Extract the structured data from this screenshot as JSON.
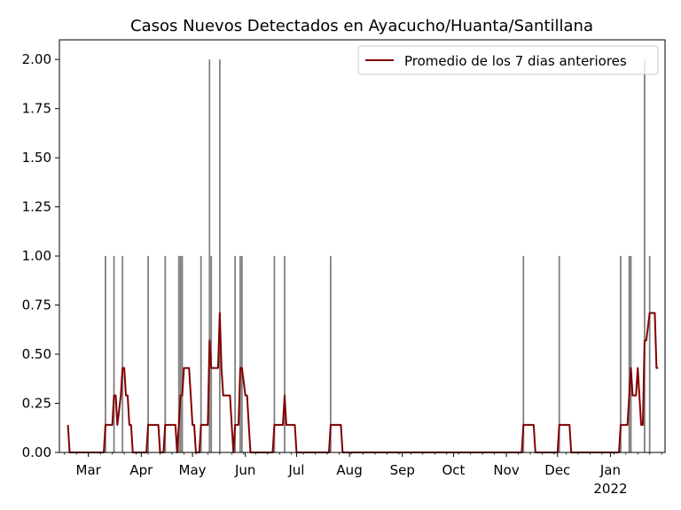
{
  "chart_data": {
    "type": "bar",
    "title": "Casos Nuevos Detectados en Ayacucho/Huanta/Santillana",
    "xlabel": "",
    "ylabel": "",
    "ylim": [
      0,
      2.1
    ],
    "xlim": [
      "2021-02-12",
      "2022-02-02"
    ],
    "yticks": [
      0.0,
      0.25,
      0.5,
      0.75,
      1.0,
      1.25,
      1.5,
      1.75,
      2.0
    ],
    "ytick_labels": [
      "0.00",
      "0.25",
      "0.50",
      "0.75",
      "1.00",
      "1.25",
      "1.50",
      "1.75",
      "2.00"
    ],
    "xticks": [
      {
        "date": "2021-03-01",
        "label": "Mar"
      },
      {
        "date": "2021-04-01",
        "label": "Apr"
      },
      {
        "date": "2021-05-01",
        "label": "May"
      },
      {
        "date": "2021-06-01",
        "label": "Jun"
      },
      {
        "date": "2021-07-01",
        "label": "Jul"
      },
      {
        "date": "2021-08-01",
        "label": "Aug"
      },
      {
        "date": "2021-09-01",
        "label": "Sep"
      },
      {
        "date": "2021-10-01",
        "label": "Oct"
      },
      {
        "date": "2021-11-01",
        "label": "Nov"
      },
      {
        "date": "2021-12-01",
        "label": "Dec"
      },
      {
        "date": "2022-01-01",
        "label": "Jan",
        "sublabel": "2022"
      }
    ],
    "grid": false,
    "legend_position": "top-right",
    "bar_color": "#808080",
    "line_color": "#800000",
    "cases": [
      {
        "date": "2021-03-11",
        "value": 1
      },
      {
        "date": "2021-03-16",
        "value": 1
      },
      {
        "date": "2021-03-21",
        "value": 1
      },
      {
        "date": "2021-04-05",
        "value": 1
      },
      {
        "date": "2021-04-15",
        "value": 1
      },
      {
        "date": "2021-04-23",
        "value": 1
      },
      {
        "date": "2021-04-24",
        "value": 1
      },
      {
        "date": "2021-04-25",
        "value": 1
      },
      {
        "date": "2021-05-06",
        "value": 1
      },
      {
        "date": "2021-05-11",
        "value": 2
      },
      {
        "date": "2021-05-12",
        "value": 1
      },
      {
        "date": "2021-05-17",
        "value": 2
      },
      {
        "date": "2021-05-26",
        "value": 1
      },
      {
        "date": "2021-05-29",
        "value": 1
      },
      {
        "date": "2021-05-30",
        "value": 1
      },
      {
        "date": "2021-06-18",
        "value": 1
      },
      {
        "date": "2021-06-24",
        "value": 1
      },
      {
        "date": "2021-07-21",
        "value": 1
      },
      {
        "date": "2021-11-11",
        "value": 1
      },
      {
        "date": "2021-12-02",
        "value": 1
      },
      {
        "date": "2022-01-07",
        "value": 1
      },
      {
        "date": "2022-01-12",
        "value": 1
      },
      {
        "date": "2022-01-13",
        "value": 1
      },
      {
        "date": "2022-01-21",
        "value": 2
      },
      {
        "date": "2022-01-24",
        "value": 1
      }
    ],
    "series": [
      {
        "name": "Promedio de los 7 dias anteriores",
        "type": "line",
        "x": [
          "2021-02-17",
          "2021-02-18",
          "2021-03-10",
          "2021-03-11",
          "2021-03-15",
          "2021-03-16",
          "2021-03-17",
          "2021-03-18",
          "2021-03-20",
          "2021-03-21",
          "2021-03-22",
          "2021-03-23",
          "2021-03-24",
          "2021-03-25",
          "2021-03-26",
          "2021-03-27",
          "2021-04-04",
          "2021-04-05",
          "2021-04-11",
          "2021-04-12",
          "2021-04-14",
          "2021-04-15",
          "2021-04-21",
          "2021-04-22",
          "2021-04-23",
          "2021-04-24",
          "2021-04-25",
          "2021-04-26",
          "2021-04-29",
          "2021-04-30",
          "2021-05-01",
          "2021-05-02",
          "2021-05-03",
          "2021-05-05",
          "2021-05-06",
          "2021-05-10",
          "2021-05-11",
          "2021-05-12",
          "2021-05-16",
          "2021-05-17",
          "2021-05-18",
          "2021-05-19",
          "2021-05-23",
          "2021-05-24",
          "2021-05-25",
          "2021-05-26",
          "2021-05-28",
          "2021-05-29",
          "2021-05-30",
          "2021-06-01",
          "2021-06-02",
          "2021-06-03",
          "2021-06-04",
          "2021-06-05",
          "2021-06-17",
          "2021-06-18",
          "2021-06-23",
          "2021-06-24",
          "2021-06-25",
          "2021-06-30",
          "2021-07-01",
          "2021-07-20",
          "2021-07-21",
          "2021-07-27",
          "2021-07-28",
          "2021-11-10",
          "2021-11-11",
          "2021-11-17",
          "2021-11-18",
          "2021-12-01",
          "2021-12-02",
          "2021-12-08",
          "2021-12-09",
          "2022-01-06",
          "2022-01-07",
          "2022-01-11",
          "2022-01-12",
          "2022-01-13",
          "2022-01-14",
          "2022-01-16",
          "2022-01-17",
          "2022-01-19",
          "2022-01-20",
          "2022-01-21",
          "2022-01-22",
          "2022-01-24",
          "2022-01-27",
          "2022-01-28",
          "2022-01-29"
        ],
        "values": [
          0.14,
          0,
          0,
          0.14,
          0.14,
          0.29,
          0.29,
          0.14,
          0.29,
          0.43,
          0.43,
          0.29,
          0.29,
          0.14,
          0.14,
          0,
          0,
          0.14,
          0.14,
          0,
          0,
          0.14,
          0.14,
          0,
          0.14,
          0.29,
          0.29,
          0.43,
          0.43,
          0.29,
          0.14,
          0.14,
          0,
          0,
          0.14,
          0.14,
          0.57,
          0.43,
          0.43,
          0.71,
          0.43,
          0.29,
          0.29,
          0.14,
          0,
          0.14,
          0.14,
          0.43,
          0.43,
          0.29,
          0.29,
          0.14,
          0,
          0,
          0,
          0.14,
          0.14,
          0.29,
          0.14,
          0.14,
          0,
          0,
          0.14,
          0.14,
          0,
          0,
          0.14,
          0.14,
          0,
          0,
          0.14,
          0.14,
          0,
          0,
          0.14,
          0.14,
          0.29,
          0.43,
          0.29,
          0.29,
          0.43,
          0.14,
          0.14,
          0.57,
          0.57,
          0.71,
          0.71,
          0.43,
          0.43
        ]
      }
    ]
  }
}
